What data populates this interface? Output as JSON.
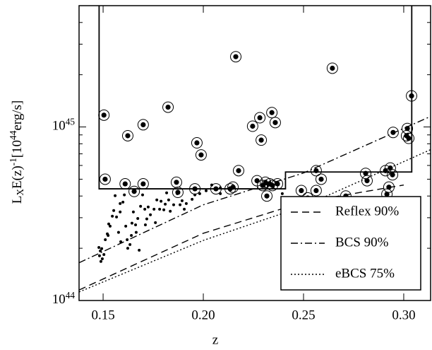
{
  "chart_data": {
    "type": "scatter",
    "xlabel": "z",
    "ylabel": "L_{X}E(z)^{-1}[10^{44}erg/s]",
    "xlim": [
      0.138,
      0.3134
    ],
    "ylim": [
      1,
      50
    ],
    "yscale": "log",
    "xticks": [
      0.15,
      {
        "value": 0.2,
        "label": "0.20"
      },
      0.25,
      {
        "value": 0.3,
        "label": "0.30"
      }
    ],
    "yticks": [
      {
        "value": 1,
        "label": "10^{44}"
      },
      {
        "value": 10,
        "label": "10^{45}"
      }
    ],
    "yminorticks": [
      2,
      3,
      4,
      5,
      6,
      7,
      8,
      9,
      20,
      30,
      40,
      50
    ],
    "legend": "lower right",
    "color": "#000000",
    "points": {
      "x": [
        0.1479,
        0.1486,
        0.1482,
        0.1489,
        0.1493,
        0.1504,
        0.1496,
        0.1521,
        0.1511,
        0.1528,
        0.1535,
        0.1525,
        0.1546,
        0.1553,
        0.156,
        0.1567,
        0.1577,
        0.1585,
        0.1585,
        0.1588,
        0.1599,
        0.1606,
        0.1613,
        0.162,
        0.1623,
        0.1634,
        0.1641,
        0.1644,
        0.1651,
        0.1662,
        0.1665,
        0.1673,
        0.168,
        0.1687,
        0.1697,
        0.1708,
        0.1711,
        0.1718,
        0.1725,
        0.1736,
        0.1754,
        0.1761,
        0.1768,
        0.1782,
        0.1789,
        0.1803,
        0.181,
        0.1817,
        0.1827,
        0.1835,
        0.1852,
        0.187,
        0.1884,
        0.1894,
        0.1905,
        0.1915,
        0.1944,
        0.1958,
        0.1982,
        0.2014,
        0.2042,
        0.2085,
        0.2085,
        0.2394,
        0.2817
      ],
      "values": [
        2.02,
        1.93,
        1.81,
        1.68,
        1.99,
        1.84,
        1.74,
        2.42,
        2.24,
        2.76,
        2.68,
        2.37,
        3.06,
        3.3,
        4.02,
        3.03,
        2.47,
        3.62,
        3.24,
        2.18,
        3.69,
        4.06,
        2.68,
        2.24,
        2.0,
        2.1,
        2.37,
        2.79,
        3.24,
        2.73,
        2.47,
        2.97,
        1.95,
        3.49,
        4.06,
        3.36,
        2.73,
        2.95,
        3.46,
        3.12,
        3.36,
        2.81,
        3.8,
        3.36,
        3.73,
        3.33,
        3.59,
        4.17,
        3.8,
        3.27,
        3.56,
        4.13,
        3.56,
        3.76,
        3.36,
        3.62,
        3.83,
        4.06,
        4.13,
        4.29,
        4.63,
        4.46,
        4.13,
        4.13,
        3.24
      ]
    },
    "circled": {
      "x": [
        0.1504,
        0.151,
        0.1623,
        0.161,
        0.17,
        0.17,
        0.1655,
        0.1824,
        0.2162,
        0.2644,
        0.3039,
        0.1866,
        0.1873,
        0.1958,
        0.1968,
        0.1989,
        0.2063,
        0.2134,
        0.2148,
        0.2176,
        0.2246,
        0.2282,
        0.2289,
        0.2342,
        0.2359,
        0.2268,
        0.2296,
        0.231,
        0.2331,
        0.2345,
        0.2317,
        0.237,
        0.2489,
        0.2493,
        0.2521,
        0.2563,
        0.2563,
        0.2588,
        0.2711,
        0.2916,
        0.2909,
        0.2926,
        0.2944,
        0.3014,
        0.3018,
        0.3025,
        0.2947,
        0.281,
        0.2817,
        0.2933
      ],
      "values": [
        11.7,
        5.0,
        8.9,
        4.7,
        10.3,
        4.7,
        4.25,
        13.0,
        25.4,
        21.8,
        15.1,
        4.8,
        4.2,
        4.4,
        8.1,
        6.9,
        4.4,
        4.4,
        4.5,
        5.6,
        10.1,
        11.3,
        8.4,
        12.1,
        10.6,
        4.9,
        4.6,
        4.8,
        4.7,
        4.6,
        4.0,
        4.7,
        4.3,
        3.4,
        3.9,
        4.3,
        5.6,
        5.0,
        4.0,
        4.1,
        5.6,
        4.5,
        5.3,
        8.9,
        9.8,
        8.6,
        9.3,
        5.4,
        4.9,
        5.8
      ]
    },
    "box": {
      "x": [
        0.148,
        0.148,
        0.241,
        0.241,
        0.304,
        0.304
      ],
      "values": [
        50,
        4.4,
        4.4,
        5.5,
        5.5,
        50
      ]
    },
    "lines": [
      {
        "name": "Reflex 90%",
        "style": "dashed",
        "x": [
          0.138,
          0.2,
          0.25,
          0.3
        ],
        "values": [
          1.15,
          2.44,
          3.69,
          4.63
        ]
      },
      {
        "name": "BCS 90%",
        "style": "dashdot",
        "x": [
          0.138,
          0.2,
          0.25,
          0.3134
        ],
        "values": [
          1.65,
          3.56,
          5.43,
          11.5
        ]
      },
      {
        "name": "eBCS 75%",
        "style": "dotted",
        "x": [
          0.138,
          0.2,
          0.25,
          0.3134
        ],
        "values": [
          1.12,
          2.22,
          3.49,
          7.4
        ]
      }
    ]
  }
}
